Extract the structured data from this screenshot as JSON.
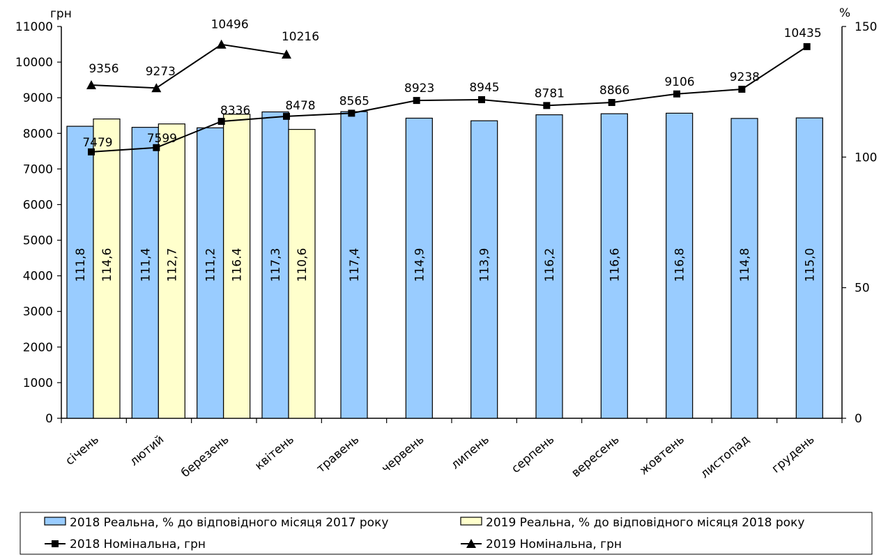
{
  "chart_data": {
    "type": "bar",
    "categories": [
      "січень",
      "лютий",
      "березень",
      "квітень",
      "травень",
      "червень",
      "липень",
      "серпень",
      "вересень",
      "жовтень",
      "листопад",
      "грудень"
    ],
    "left_axis": {
      "unit": "грн",
      "ylim": [
        0,
        11000
      ],
      "ticks": [
        "0",
        "1000",
        "2000",
        "3000",
        "4000",
        "5000",
        "6000",
        "7000",
        "8000",
        "9000",
        "10000",
        "11000"
      ]
    },
    "right_axis": {
      "unit": "%",
      "ylim": [
        0,
        150
      ],
      "ticks": [
        "0",
        "50",
        "100",
        "150"
      ]
    },
    "series": [
      {
        "name": "2018 Реальна, % до відповідного місяця 2017 року",
        "type": "bar",
        "axis": "right",
        "color": "#99ccff",
        "values": [
          111.8,
          111.4,
          111.2,
          117.3,
          117.4,
          114.9,
          113.9,
          116.2,
          116.6,
          116.8,
          114.8,
          115.0
        ],
        "labels": [
          "111,8",
          "111,4",
          "111,2",
          "117,3",
          "117,4",
          "114,9",
          "113,9",
          "116,2",
          "116,6",
          "116,8",
          "114,8",
          "115,0"
        ]
      },
      {
        "name": "2019 Реальна, % до відповідного місяця 2018 року",
        "type": "bar",
        "axis": "right",
        "color": "#ffffcc",
        "values": [
          114.6,
          112.7,
          116.4,
          110.6,
          null,
          null,
          null,
          null,
          null,
          null,
          null,
          null
        ],
        "labels": [
          "114,6",
          "112,7",
          "116.4",
          "110,6",
          "",
          "",
          "",
          "",
          "",
          "",
          "",
          ""
        ]
      },
      {
        "name": "2018 Номінальна, грн",
        "type": "line",
        "marker": "square",
        "axis": "left",
        "values": [
          7479,
          7599,
          8336,
          8478,
          8565,
          8923,
          8945,
          8781,
          8866,
          9106,
          9238,
          10435
        ],
        "labels": [
          "7479",
          "7599",
          "8336",
          "8478",
          "8565",
          "8923",
          "8945",
          "8781",
          "8866",
          "9106",
          "9238",
          "10435"
        ]
      },
      {
        "name": "2019 Номінальна, грн",
        "type": "line",
        "marker": "triangle",
        "axis": "left",
        "values": [
          9356,
          9273,
          10496,
          10216,
          null,
          null,
          null,
          null,
          null,
          null,
          null,
          null
        ],
        "labels": [
          "9356",
          "9273",
          "10496",
          "10216",
          "",
          "",
          "",
          "",
          "",
          "",
          "",
          ""
        ]
      }
    ],
    "legend": {
      "position": "bottom",
      "items": [
        "2018 Реальна, % до відповідного місяця 2017 року",
        "2019 Реальна, % до відповідного місяця 2018 року",
        "2018 Номінальна, грн",
        "2019 Номінальна, грн"
      ]
    },
    "grid": false
  }
}
